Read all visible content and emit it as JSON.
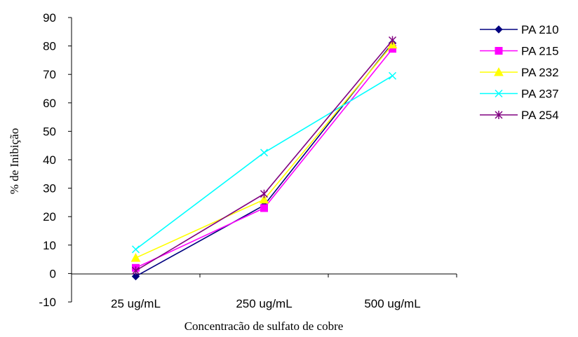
{
  "chart_data": {
    "type": "line",
    "title": "",
    "xlabel": "Concentracão de sulfato de cobre",
    "ylabel": "% de Inibição",
    "categories": [
      "25 ug/mL",
      "250 ug/mL",
      "500 ug/mL"
    ],
    "ylim": [
      -10,
      90
    ],
    "yticks": [
      -10,
      0,
      10,
      20,
      30,
      40,
      50,
      60,
      70,
      80,
      90
    ],
    "grid": false,
    "legend": "right",
    "series": [
      {
        "name": "PA 210",
        "values": [
          -1,
          24,
          81
        ],
        "color": "#000080",
        "marker": "diamond"
      },
      {
        "name": "PA 215",
        "values": [
          2,
          23,
          79
        ],
        "color": "#ff00ff",
        "marker": "square"
      },
      {
        "name": "PA 232",
        "values": [
          5.5,
          26,
          80.5
        ],
        "color": "#ffff00",
        "marker": "triangle"
      },
      {
        "name": "PA 237",
        "values": [
          8.5,
          42.5,
          69.5
        ],
        "color": "#00ffff",
        "marker": "x"
      },
      {
        "name": "PA 254",
        "values": [
          1,
          28,
          82
        ],
        "color": "#800080",
        "marker": "star"
      }
    ]
  }
}
